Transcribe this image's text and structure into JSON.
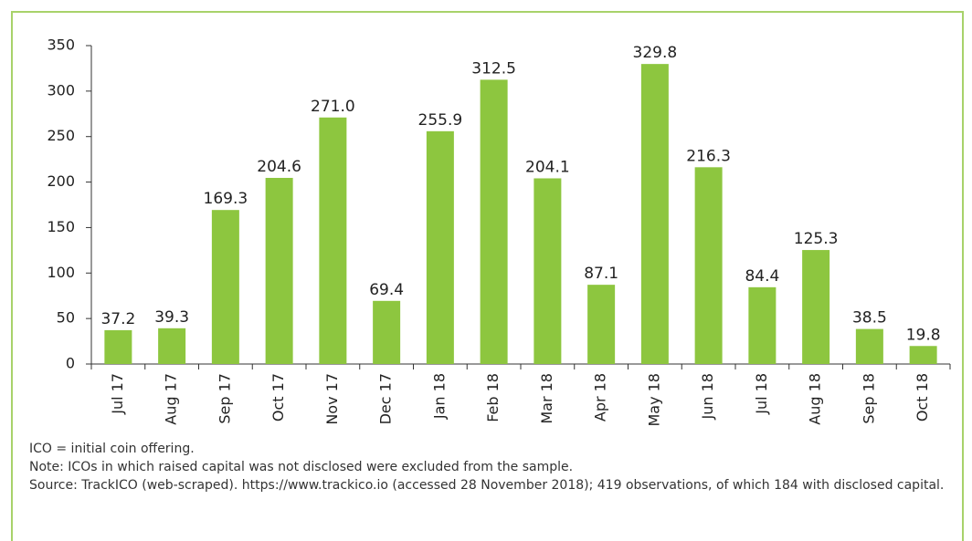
{
  "chart_data": {
    "type": "bar",
    "categories": [
      "Jul 17",
      "Aug 17",
      "Sep 17",
      "Oct 17",
      "Nov 17",
      "Dec 17",
      "Jan 18",
      "Feb 18",
      "Mar 18",
      "Apr 18",
      "May 18",
      "Jun 18",
      "Jul 18",
      "Aug 18",
      "Sep 18",
      "Oct 18"
    ],
    "values": [
      37.2,
      39.3,
      169.3,
      204.6,
      271.0,
      69.4,
      255.9,
      312.5,
      204.1,
      87.1,
      329.8,
      216.3,
      84.4,
      125.3,
      38.5,
      19.8
    ],
    "value_labels": [
      "37.2",
      "39.3",
      "169.3",
      "204.6",
      "271.0",
      "69.4",
      "255.9",
      "312.5",
      "204.1",
      "87.1",
      "329.8",
      "216.3",
      "84.4",
      "125.3",
      "38.5",
      "19.8"
    ],
    "color": "#8dc63f",
    "ylim": [
      0,
      350
    ],
    "yticks": [
      0,
      50,
      100,
      150,
      200,
      250,
      300,
      350
    ],
    "grid": false
  },
  "notes": [
    "ICO = initial coin offering.",
    "Note: ICOs in which raised capital was not disclosed were excluded from the sample.",
    "Source: TrackICO (web-scraped). https://www.trackico.io (accessed 28 November 2018); 419 observations, of which 184 with disclosed capital."
  ]
}
